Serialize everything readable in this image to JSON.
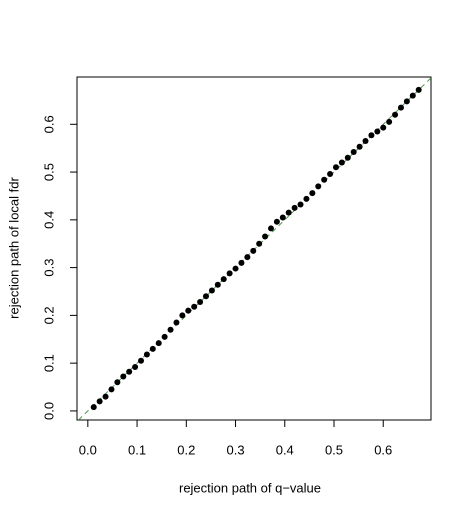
{
  "chart_data": {
    "type": "scatter",
    "x_label": "rejection path of q−value",
    "y_label": "rejection path of local fdr",
    "x": [
      0.012,
      0.024,
      0.036,
      0.048,
      0.06,
      0.072,
      0.084,
      0.096,
      0.108,
      0.12,
      0.132,
      0.144,
      0.156,
      0.168,
      0.18,
      0.192,
      0.204,
      0.216,
      0.228,
      0.24,
      0.252,
      0.264,
      0.276,
      0.288,
      0.3,
      0.312,
      0.324,
      0.336,
      0.348,
      0.36,
      0.372,
      0.384,
      0.396,
      0.408,
      0.42,
      0.432,
      0.444,
      0.456,
      0.468,
      0.48,
      0.492,
      0.504,
      0.516,
      0.528,
      0.54,
      0.552,
      0.564,
      0.576,
      0.588,
      0.6,
      0.612,
      0.624,
      0.636,
      0.648,
      0.66,
      0.672
    ],
    "values": [
      0.008,
      0.02,
      0.03,
      0.045,
      0.06,
      0.072,
      0.082,
      0.092,
      0.105,
      0.118,
      0.13,
      0.142,
      0.155,
      0.17,
      0.185,
      0.2,
      0.21,
      0.218,
      0.228,
      0.24,
      0.252,
      0.264,
      0.276,
      0.288,
      0.298,
      0.31,
      0.322,
      0.335,
      0.35,
      0.365,
      0.382,
      0.396,
      0.405,
      0.415,
      0.425,
      0.432,
      0.444,
      0.456,
      0.47,
      0.484,
      0.496,
      0.51,
      0.52,
      0.53,
      0.542,
      0.553,
      0.565,
      0.577,
      0.585,
      0.593,
      0.605,
      0.62,
      0.635,
      0.648,
      0.66,
      0.672
    ],
    "color": "#000000",
    "reference_line_color": "#4a9a4a",
    "xlim": [
      -0.022,
      0.697
    ],
    "ylim": [
      -0.019,
      0.699
    ],
    "xticks": [
      {
        "value": 0,
        "label": "0.0"
      },
      0.1,
      0.2,
      0.3,
      0.4,
      0.5,
      0.6
    ],
    "yticks": [
      {
        "value": 0,
        "label": "0.0"
      },
      0.1,
      0.2,
      0.3,
      0.4,
      0.5,
      0.6
    ]
  }
}
